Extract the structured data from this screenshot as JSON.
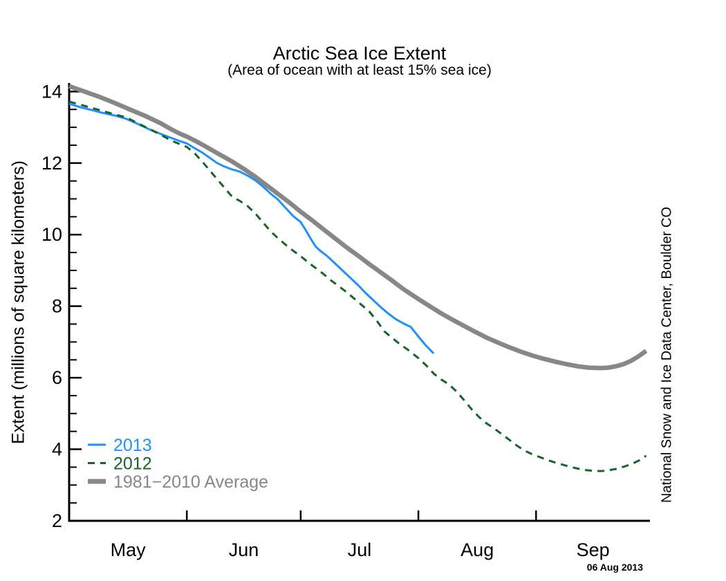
{
  "attribution": "National Snow and Ice Data Center, Boulder CO",
  "datestamp": "06 Aug 2013",
  "colors": {
    "background": "#ffffff",
    "axis": "#000000",
    "series_2013": "#1e90ff",
    "series_2012": "#17632a",
    "series_average": "#878787"
  },
  "chart_data": {
    "type": "line",
    "title": "Arctic Sea Ice Extent",
    "subtitle": "(Area of ocean with at least 15% sea ice)",
    "ylabel": "Extent (millions of square kilometers)",
    "xlabel": "",
    "grid": false,
    "legend_position": "inside lower-left",
    "y_axis": {
      "min": 2,
      "max": 14.2,
      "major_ticks": [
        2,
        4,
        6,
        8,
        10,
        12,
        14
      ],
      "minor_tick_step": 0.5
    },
    "x_axis": {
      "unit": "days since May 1",
      "domain": [
        0,
        153
      ],
      "month_labels": [
        "May",
        "Jun",
        "Jul",
        "Aug",
        "Sep"
      ],
      "month_label_days": [
        15.5,
        46,
        76.5,
        107.5,
        138
      ],
      "month_tick_days": [
        31,
        61,
        92,
        123
      ]
    },
    "series": [
      {
        "name": "2013",
        "color": "#1e90ff",
        "style": "solid",
        "line_width": 3,
        "points": [
          [
            0,
            13.66
          ],
          [
            3,
            13.56
          ],
          [
            6,
            13.48
          ],
          [
            9,
            13.4
          ],
          [
            12,
            13.33
          ],
          [
            15,
            13.24
          ],
          [
            18,
            13.1
          ],
          [
            21,
            12.95
          ],
          [
            24,
            12.82
          ],
          [
            27,
            12.7
          ],
          [
            29,
            12.62
          ],
          [
            31,
            12.55
          ],
          [
            33,
            12.42
          ],
          [
            35,
            12.3
          ],
          [
            37,
            12.15
          ],
          [
            39,
            12.0
          ],
          [
            41,
            11.9
          ],
          [
            43,
            11.82
          ],
          [
            45,
            11.76
          ],
          [
            47,
            11.65
          ],
          [
            49,
            11.52
          ],
          [
            51,
            11.35
          ],
          [
            53,
            11.15
          ],
          [
            55,
            10.98
          ],
          [
            57,
            10.75
          ],
          [
            59,
            10.52
          ],
          [
            61,
            10.35
          ],
          [
            62,
            10.18
          ],
          [
            63,
            10.0
          ],
          [
            64,
            9.82
          ],
          [
            65,
            9.66
          ],
          [
            66,
            9.56
          ],
          [
            68,
            9.4
          ],
          [
            70,
            9.2
          ],
          [
            72,
            9.0
          ],
          [
            74,
            8.8
          ],
          [
            76,
            8.6
          ],
          [
            78,
            8.38
          ],
          [
            80,
            8.18
          ],
          [
            82,
            7.98
          ],
          [
            84,
            7.8
          ],
          [
            86,
            7.64
          ],
          [
            88,
            7.52
          ],
          [
            90,
            7.42
          ],
          [
            92,
            7.15
          ],
          [
            94,
            6.9
          ],
          [
            96,
            6.68
          ]
        ]
      },
      {
        "name": "2012",
        "color": "#17632a",
        "style": "dashed",
        "line_width": 3,
        "points": [
          [
            0,
            13.72
          ],
          [
            4,
            13.6
          ],
          [
            8,
            13.48
          ],
          [
            12,
            13.36
          ],
          [
            15,
            13.28
          ],
          [
            18,
            13.12
          ],
          [
            21,
            12.96
          ],
          [
            24,
            12.8
          ],
          [
            26,
            12.68
          ],
          [
            28,
            12.58
          ],
          [
            31,
            12.45
          ],
          [
            33,
            12.28
          ],
          [
            35,
            12.05
          ],
          [
            37,
            11.8
          ],
          [
            39,
            11.55
          ],
          [
            41,
            11.3
          ],
          [
            43,
            11.05
          ],
          [
            45,
            10.94
          ],
          [
            47,
            10.8
          ],
          [
            49,
            10.6
          ],
          [
            51,
            10.35
          ],
          [
            53,
            10.1
          ],
          [
            55,
            9.9
          ],
          [
            57,
            9.72
          ],
          [
            59,
            9.55
          ],
          [
            61,
            9.4
          ],
          [
            63,
            9.22
          ],
          [
            65,
            9.06
          ],
          [
            67,
            8.9
          ],
          [
            69,
            8.72
          ],
          [
            71,
            8.56
          ],
          [
            73,
            8.4
          ],
          [
            75,
            8.22
          ],
          [
            77,
            8.04
          ],
          [
            79,
            7.86
          ],
          [
            81,
            7.6
          ],
          [
            83,
            7.3
          ],
          [
            85,
            7.12
          ],
          [
            87,
            6.95
          ],
          [
            89,
            6.8
          ],
          [
            92,
            6.55
          ],
          [
            94,
            6.35
          ],
          [
            96,
            6.12
          ],
          [
            98,
            5.95
          ],
          [
            100,
            5.82
          ],
          [
            102,
            5.62
          ],
          [
            104,
            5.38
          ],
          [
            106,
            5.12
          ],
          [
            108,
            4.9
          ],
          [
            110,
            4.72
          ],
          [
            112,
            4.58
          ],
          [
            114,
            4.42
          ],
          [
            116,
            4.26
          ],
          [
            118,
            4.1
          ],
          [
            120,
            3.96
          ],
          [
            122,
            3.86
          ],
          [
            124,
            3.78
          ],
          [
            126,
            3.7
          ],
          [
            128,
            3.63
          ],
          [
            130,
            3.57
          ],
          [
            132,
            3.51
          ],
          [
            134,
            3.46
          ],
          [
            136,
            3.42
          ],
          [
            138,
            3.4
          ],
          [
            140,
            3.39
          ],
          [
            142,
            3.41
          ],
          [
            144,
            3.45
          ],
          [
            146,
            3.51
          ],
          [
            148,
            3.58
          ],
          [
            150,
            3.68
          ],
          [
            152,
            3.82
          ]
        ]
      },
      {
        "name": "1981−2010 Average",
        "color": "#878787",
        "style": "solid",
        "line_width": 6.5,
        "points": [
          [
            0,
            14.15
          ],
          [
            4,
            14.0
          ],
          [
            8,
            13.85
          ],
          [
            12,
            13.68
          ],
          [
            16,
            13.5
          ],
          [
            20,
            13.32
          ],
          [
            24,
            13.12
          ],
          [
            27,
            12.94
          ],
          [
            29,
            12.83
          ],
          [
            31,
            12.74
          ],
          [
            34,
            12.58
          ],
          [
            37,
            12.4
          ],
          [
            40,
            12.22
          ],
          [
            43,
            12.04
          ],
          [
            46,
            11.84
          ],
          [
            49,
            11.62
          ],
          [
            52,
            11.38
          ],
          [
            55,
            11.14
          ],
          [
            58,
            10.9
          ],
          [
            61,
            10.64
          ],
          [
            64,
            10.4
          ],
          [
            67,
            10.15
          ],
          [
            70,
            9.9
          ],
          [
            73,
            9.65
          ],
          [
            76,
            9.42
          ],
          [
            79,
            9.18
          ],
          [
            82,
            8.95
          ],
          [
            85,
            8.72
          ],
          [
            88,
            8.48
          ],
          [
            92,
            8.2
          ],
          [
            95,
            8.0
          ],
          [
            98,
            7.8
          ],
          [
            101,
            7.62
          ],
          [
            104,
            7.45
          ],
          [
            107,
            7.28
          ],
          [
            110,
            7.12
          ],
          [
            113,
            6.98
          ],
          [
            116,
            6.85
          ],
          [
            119,
            6.73
          ],
          [
            122,
            6.62
          ],
          [
            125,
            6.53
          ],
          [
            128,
            6.45
          ],
          [
            131,
            6.38
          ],
          [
            134,
            6.32
          ],
          [
            137,
            6.28
          ],
          [
            140,
            6.27
          ],
          [
            142,
            6.28
          ],
          [
            144,
            6.32
          ],
          [
            146,
            6.38
          ],
          [
            148,
            6.47
          ],
          [
            150,
            6.6
          ],
          [
            152,
            6.75
          ]
        ]
      }
    ]
  }
}
